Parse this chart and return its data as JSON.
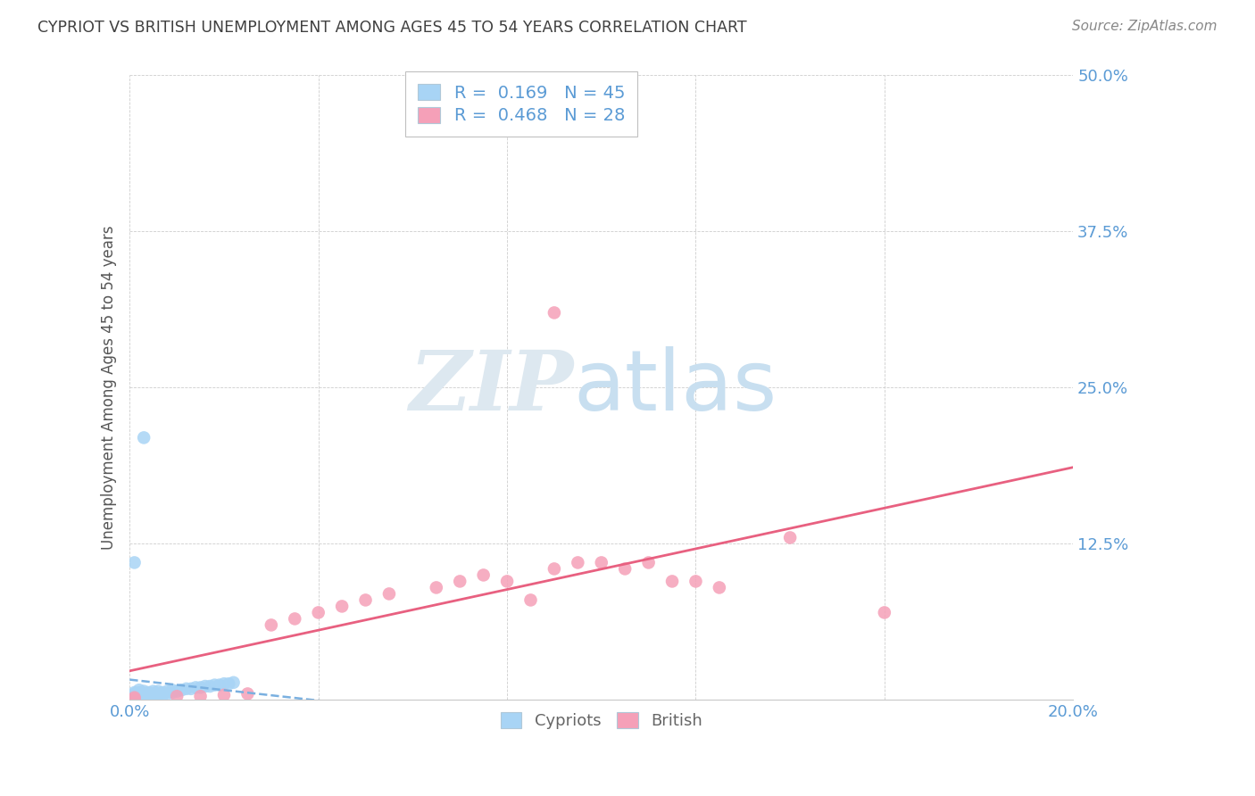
{
  "title": "CYPRIOT VS BRITISH UNEMPLOYMENT AMONG AGES 45 TO 54 YEARS CORRELATION CHART",
  "source": "Source: ZipAtlas.com",
  "ylabel": "Unemployment Among Ages 45 to 54 years",
  "xlim": [
    0.0,
    0.2
  ],
  "ylim": [
    0.0,
    0.5
  ],
  "x_ticks": [
    0.0,
    0.04,
    0.08,
    0.12,
    0.16,
    0.2
  ],
  "y_ticks": [
    0.0,
    0.125,
    0.25,
    0.375,
    0.5
  ],
  "cypriot_R": 0.169,
  "cypriot_N": 45,
  "british_R": 0.468,
  "british_N": 28,
  "cypriot_color": "#a8d4f5",
  "british_color": "#f5a0b8",
  "cypriot_line_color": "#7ab0e0",
  "british_line_color": "#e86080",
  "axis_label_color": "#5b9bd5",
  "bottom_label_color": "#666666",
  "cypriot_scatter_x": [
    0.001,
    0.001,
    0.001,
    0.001,
    0.001,
    0.001,
    0.002,
    0.002,
    0.002,
    0.002,
    0.002,
    0.003,
    0.003,
    0.003,
    0.003,
    0.004,
    0.004,
    0.004,
    0.005,
    0.005,
    0.005,
    0.006,
    0.006,
    0.006,
    0.007,
    0.007,
    0.008,
    0.008,
    0.009,
    0.009,
    0.01,
    0.011,
    0.012,
    0.013,
    0.014,
    0.015,
    0.016,
    0.017,
    0.018,
    0.019,
    0.02,
    0.021,
    0.022,
    0.003,
    0.001
  ],
  "cypriot_scatter_y": [
    0.001,
    0.002,
    0.003,
    0.004,
    0.005,
    0.006,
    0.001,
    0.002,
    0.004,
    0.006,
    0.008,
    0.001,
    0.003,
    0.005,
    0.007,
    0.002,
    0.004,
    0.006,
    0.003,
    0.005,
    0.007,
    0.003,
    0.005,
    0.007,
    0.004,
    0.006,
    0.005,
    0.007,
    0.006,
    0.008,
    0.007,
    0.008,
    0.009,
    0.009,
    0.01,
    0.01,
    0.011,
    0.011,
    0.012,
    0.012,
    0.013,
    0.013,
    0.014,
    0.21,
    0.11
  ],
  "british_scatter_x": [
    0.001,
    0.001,
    0.01,
    0.015,
    0.02,
    0.025,
    0.03,
    0.035,
    0.04,
    0.045,
    0.05,
    0.055,
    0.065,
    0.07,
    0.075,
    0.08,
    0.085,
    0.09,
    0.095,
    0.1,
    0.105,
    0.11,
    0.115,
    0.12,
    0.125,
    0.14,
    0.16,
    0.09
  ],
  "british_scatter_y": [
    0.001,
    0.002,
    0.003,
    0.003,
    0.004,
    0.005,
    0.06,
    0.065,
    0.07,
    0.075,
    0.08,
    0.085,
    0.09,
    0.095,
    0.1,
    0.095,
    0.08,
    0.105,
    0.11,
    0.11,
    0.105,
    0.11,
    0.095,
    0.095,
    0.09,
    0.13,
    0.07,
    0.31
  ]
}
